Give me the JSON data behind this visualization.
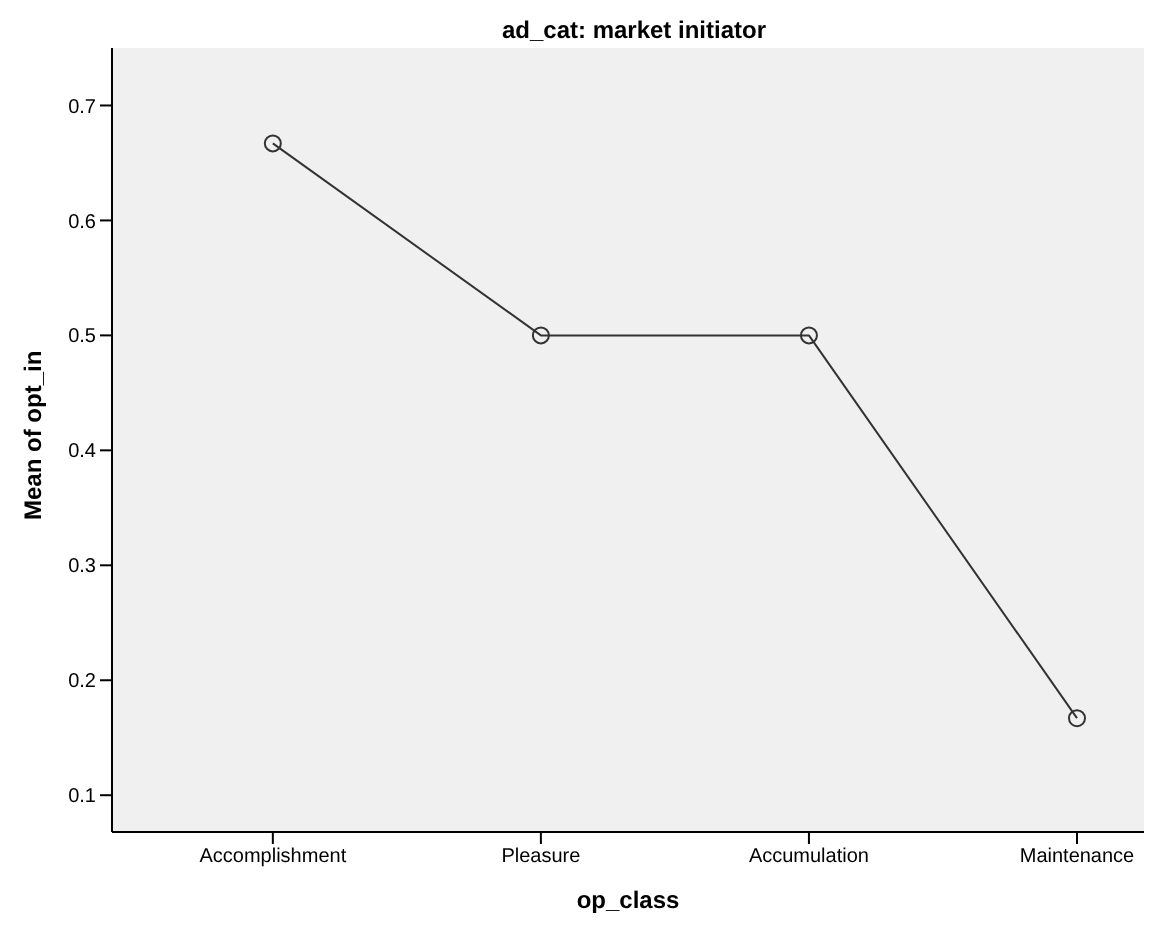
{
  "chart_data": {
    "type": "line",
    "title": "ad_cat: market initiator",
    "xlabel": "op_class",
    "ylabel": "Mean of opt_in",
    "categories": [
      "Accomplishment",
      "Pleasure",
      "Accumulation",
      "Maintenance"
    ],
    "series": [
      {
        "color": "#333333",
        "values": [
          0.667,
          0.5,
          0.5,
          0.167
        ]
      }
    ],
    "ylim": [
      0.068,
      0.75
    ],
    "yticks": [
      0.1,
      0.2,
      0.3,
      0.4,
      0.5,
      0.6,
      0.7
    ],
    "grid": false,
    "legend": false,
    "marker": "circle",
    "line_style": "solid"
  }
}
